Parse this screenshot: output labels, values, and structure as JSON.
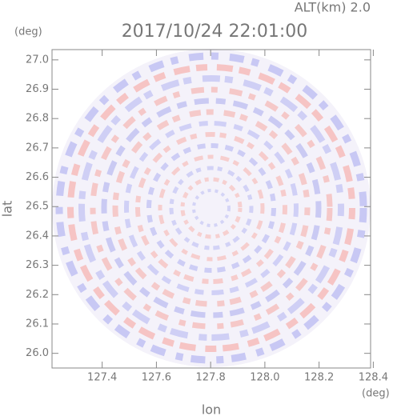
{
  "chart_data": {
    "type": "ppi",
    "title": "2017/10/24 22:01:00",
    "subtitle": "ALT(km) 2.0",
    "x_label": "lon",
    "y_label": "lat",
    "x_unit": "(deg)",
    "y_unit": "(deg)",
    "xlim": [
      127.215,
      128.39
    ],
    "ylim": [
      25.95,
      27.035
    ],
    "xticks": [
      127.4,
      127.6,
      127.8,
      {
        "value": 128.0,
        "label": "128.0"
      },
      128.2,
      128.4
    ],
    "yticks": [
      {
        "value": 26.0,
        "label": "26.0"
      },
      26.1,
      26.2,
      26.3,
      26.4,
      26.5,
      26.6,
      26.7,
      26.8,
      26.9,
      {
        "value": 27.0,
        "label": "27.0"
      }
    ]
  }
}
